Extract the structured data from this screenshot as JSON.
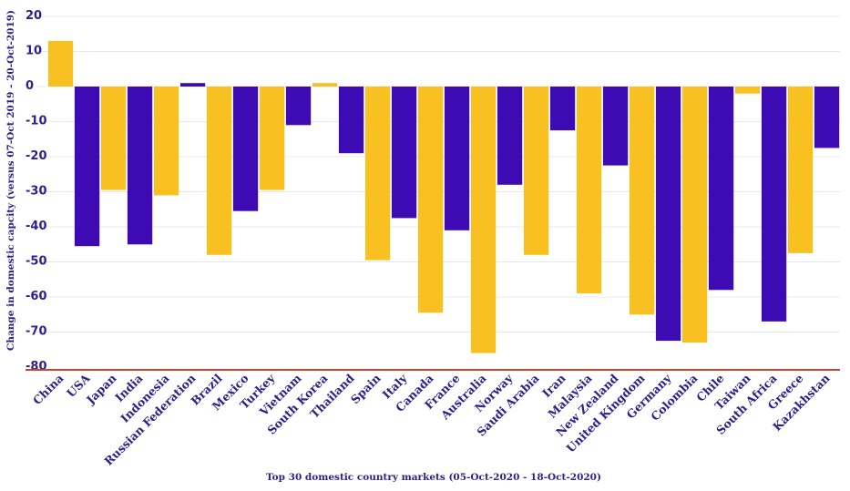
{
  "chart_data": {
    "type": "bar",
    "title": "",
    "xlabel": "Top 30 domestic country markets (05-Oct-2020 - 18-Oct-2020)",
    "ylabel": "Change in domestic capcity (versus 07-Oct 2019 - 20-Oct-2019)",
    "ylim": [
      -80,
      20
    ],
    "yticks": [
      20,
      10,
      0,
      -10,
      -20,
      -30,
      -40,
      -50,
      -60,
      -70,
      -80
    ],
    "grid": true,
    "legend": "none",
    "categories": [
      "China",
      "USA",
      "Japan",
      "India",
      "Indonesia",
      "Russian Federation",
      "Brazil",
      "Mexico",
      "Turkey",
      "Vietnam",
      "South Korea",
      "Thailand",
      "Spain",
      "Italy",
      "Canada",
      "France",
      "Australia",
      "Norway",
      "Saudi Arabia",
      "Iran",
      "Malaysia",
      "New Zealand",
      "United Kingdom",
      "Germany",
      "Colombia",
      "Chile",
      "Taiwan",
      "South Africa",
      "Greece",
      "Kazakhstan"
    ],
    "values": [
      13,
      -45.5,
      -29.5,
      -45,
      -31,
      1,
      -48,
      -35.5,
      -29.5,
      -11,
      1,
      -19,
      -49.5,
      -37.5,
      -64.5,
      -41,
      -76,
      -28,
      -48,
      -12.5,
      -59,
      -22.5,
      -65,
      -72.5,
      -73,
      -58,
      -2,
      -67,
      -47.5,
      -17.5
    ],
    "colors": [
      "#f8c020",
      "#3e0ab4",
      "#f8c020",
      "#3e0ab4",
      "#f8c020",
      "#3e0ab4",
      "#f8c020",
      "#3e0ab4",
      "#f8c020",
      "#3e0ab4",
      "#f8c020",
      "#3e0ab4",
      "#f8c020",
      "#3e0ab4",
      "#f8c020",
      "#3e0ab4",
      "#f8c020",
      "#3e0ab4",
      "#f8c020",
      "#3e0ab4",
      "#f8c020",
      "#3e0ab4",
      "#f8c020",
      "#3e0ab4",
      "#f8c020",
      "#3e0ab4",
      "#f8c020",
      "#3e0ab4",
      "#f8c020",
      "#3e0ab4"
    ]
  }
}
